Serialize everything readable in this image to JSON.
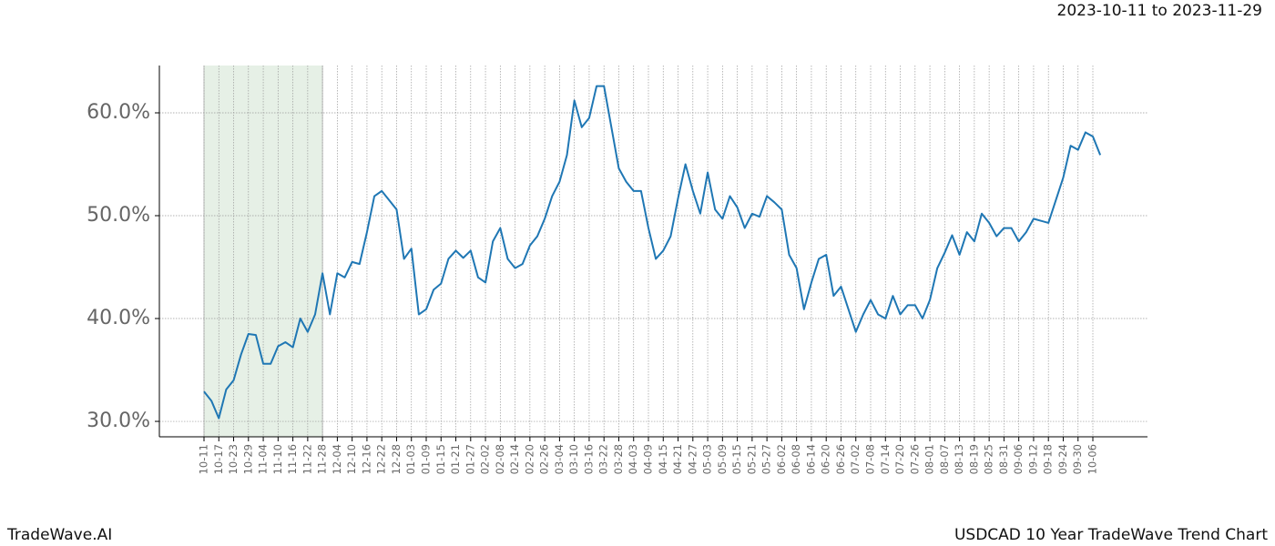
{
  "chart_data": {
    "type": "line",
    "title": "USDCAD 10 Year TradeWave Trend Chart",
    "subtitle": "2023-10-11 to 2023-11-29",
    "brand": "TradeWave.AI",
    "color": "#1f77b4",
    "grid": true,
    "shaded": {
      "from": "10-11",
      "to": "11-28",
      "color": "#e6f0e6"
    },
    "ylim": [
      28.5,
      64.6
    ],
    "yticks": [
      {
        "value": 30,
        "label": "30.0%"
      },
      {
        "value": 40,
        "label": "40.0%"
      },
      {
        "value": 50,
        "label": "50.0%"
      },
      {
        "value": 60,
        "label": "60.0%"
      }
    ],
    "categories": [
      "10-11",
      null,
      "10-17",
      null,
      "10-23",
      null,
      "10-29",
      null,
      "11-04",
      null,
      "11-10",
      null,
      "11-16",
      null,
      "11-22",
      null,
      "11-28",
      null,
      "12-04",
      null,
      "12-10",
      null,
      "12-16",
      null,
      "12-22",
      null,
      "12-28",
      null,
      "01-03",
      null,
      "01-09",
      null,
      "01-15",
      null,
      "01-21",
      null,
      "01-27",
      null,
      "02-02",
      null,
      "02-08",
      null,
      "02-14",
      null,
      "02-20",
      null,
      "02-26",
      null,
      "03-04",
      null,
      "03-10",
      null,
      "03-16",
      null,
      "03-22",
      null,
      "03-28",
      null,
      "04-03",
      null,
      "04-09",
      null,
      "04-15",
      null,
      "04-21",
      null,
      "04-27",
      null,
      "05-03",
      null,
      "05-09",
      null,
      "05-15",
      null,
      "05-21",
      null,
      "05-27",
      null,
      "06-02",
      null,
      "06-08",
      null,
      "06-14",
      null,
      "06-20",
      null,
      "06-26",
      null,
      "07-02",
      null,
      "07-08",
      null,
      "07-14",
      null,
      "07-20",
      null,
      "07-26",
      null,
      "08-01",
      null,
      "08-07",
      null,
      "08-13",
      null,
      "08-19",
      null,
      "08-25",
      null,
      "08-31",
      null,
      "09-06",
      null,
      "09-12",
      null,
      "09-18",
      null,
      "09-24",
      null,
      "09-30",
      null,
      "10-06",
      null
    ],
    "values": [
      32.9,
      32.0,
      30.3,
      33.1,
      34.0,
      36.5,
      38.5,
      38.4,
      35.6,
      35.6,
      37.3,
      37.7,
      37.2,
      40.0,
      38.7,
      40.4,
      44.4,
      40.4,
      44.4,
      44.0,
      45.5,
      45.3,
      48.4,
      51.9,
      52.4,
      51.5,
      50.6,
      45.8,
      46.8,
      40.4,
      40.9,
      42.8,
      43.4,
      45.8,
      46.6,
      45.9,
      46.6,
      44.0,
      43.5,
      47.5,
      48.8,
      45.8,
      44.9,
      45.3,
      47.1,
      48.0,
      49.7,
      51.9,
      53.3,
      55.9,
      61.2,
      58.6,
      59.5,
      62.6,
      62.6,
      58.6,
      54.6,
      53.3,
      52.4,
      52.4,
      48.8,
      45.8,
      46.6,
      48.0,
      51.7,
      55.0,
      52.4,
      50.2,
      54.2,
      50.6,
      49.7,
      51.9,
      50.8,
      48.8,
      50.2,
      49.9,
      51.9,
      51.3,
      50.6,
      46.2,
      44.9,
      40.9,
      43.5,
      45.8,
      46.2,
      42.2,
      43.1,
      40.9,
      38.7,
      40.4,
      41.8,
      40.4,
      40.0,
      42.2,
      40.4,
      41.3,
      41.3,
      40.0,
      41.8,
      44.9,
      46.4,
      48.1,
      46.2,
      48.4,
      47.5,
      50.2,
      49.3,
      48.0,
      48.8,
      48.8,
      47.5,
      48.4,
      49.7,
      49.5,
      49.3,
      51.5,
      53.7,
      56.8,
      56.4,
      58.1,
      57.7,
      55.9
    ]
  }
}
